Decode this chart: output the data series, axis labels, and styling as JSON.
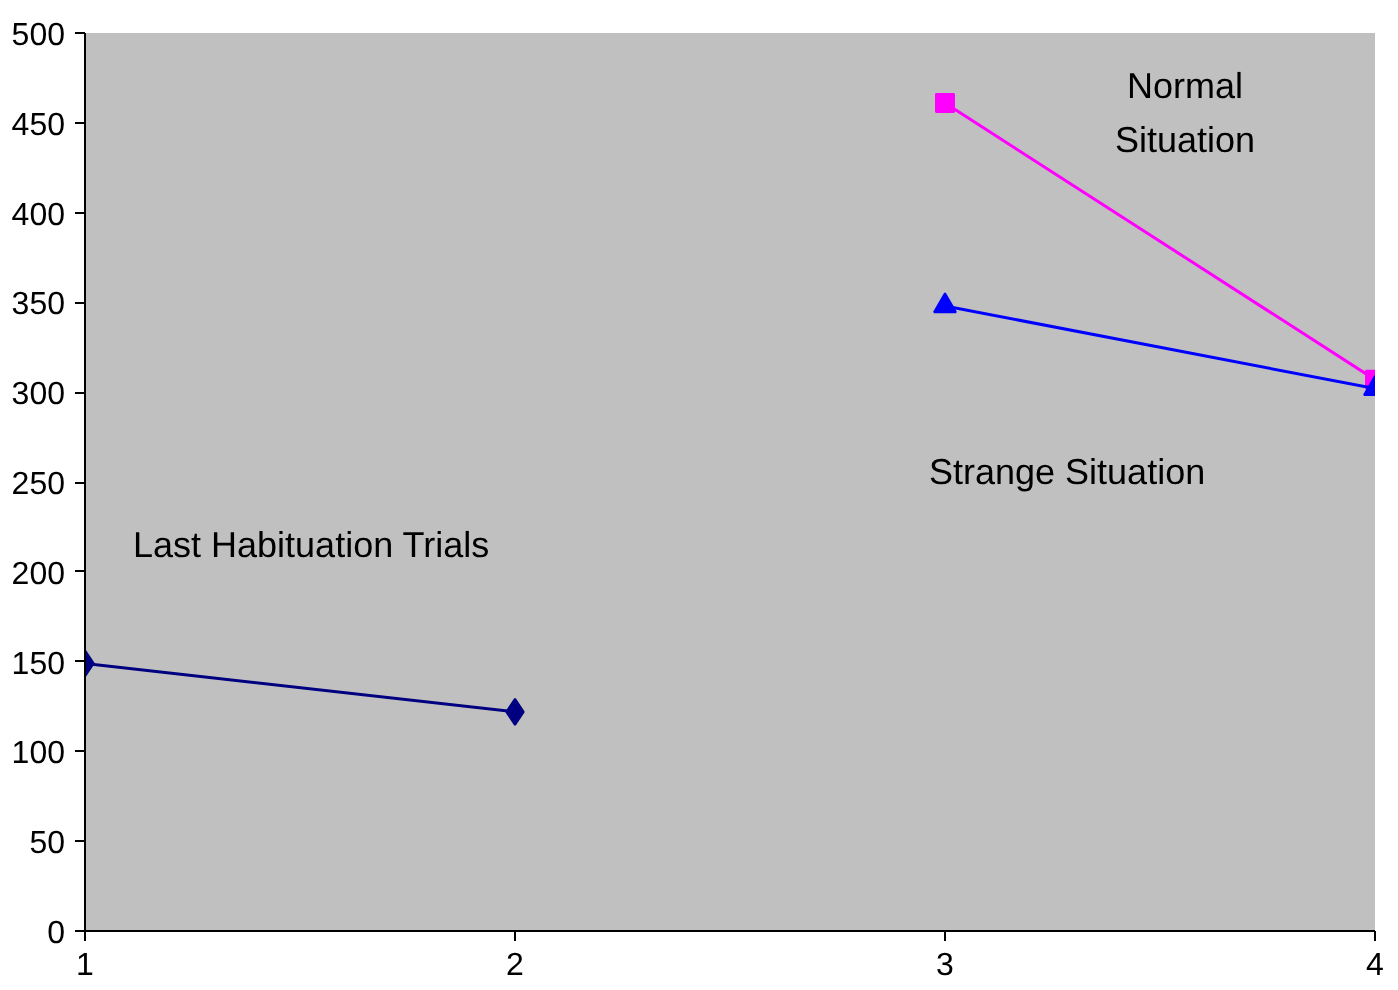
{
  "chart_data": {
    "type": "line",
    "xlim": [
      1,
      4
    ],
    "xticks": [
      1,
      2,
      3,
      4
    ],
    "ylim": [
      0,
      500
    ],
    "yticks": [
      0,
      50,
      100,
      150,
      200,
      250,
      300,
      350,
      400,
      450,
      500
    ],
    "grid": false,
    "series": [
      {
        "name": "Last Habituation Trials",
        "color": "#000080",
        "marker": "diamond",
        "x": [
          1,
          2
        ],
        "values": [
          149,
          122
        ]
      },
      {
        "name": "Normal Situation",
        "color": "#ff00ff",
        "marker": "square",
        "x": [
          3,
          4
        ],
        "values": [
          461,
          307
        ]
      },
      {
        "name": "Strange Situation",
        "color": "#0000ff",
        "marker": "triangle",
        "x": [
          3,
          4
        ],
        "values": [
          348,
          302
        ]
      }
    ]
  }
}
